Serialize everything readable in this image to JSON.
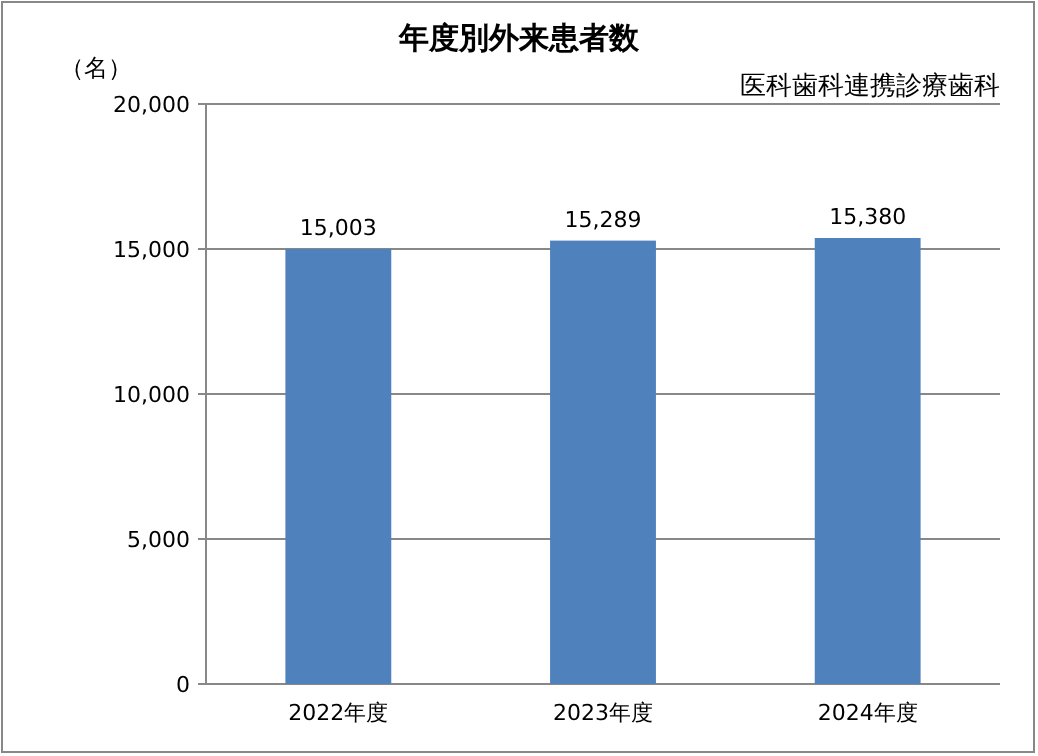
{
  "chart_data": {
    "type": "bar",
    "title": "年度別外来患者数",
    "subtitle": "医科歯科連携診療歯科",
    "ylabel": "（名）",
    "categories": [
      "2022年度",
      "2023年度",
      "2024年度"
    ],
    "values": [
      15003,
      15289,
      15380
    ],
    "value_labels": [
      "15,003",
      "15,289",
      "15,380"
    ],
    "color": "#4f81bd",
    "ylim": [
      0,
      20000
    ],
    "yticks": [
      {
        "value": 0,
        "label": "0"
      },
      {
        "value": 5000,
        "label": "5,000"
      },
      {
        "value": 10000,
        "label": "10,000"
      },
      {
        "value": 15000,
        "label": "15,000"
      },
      {
        "value": 20000,
        "label": "20,000"
      }
    ],
    "grid": "y"
  }
}
